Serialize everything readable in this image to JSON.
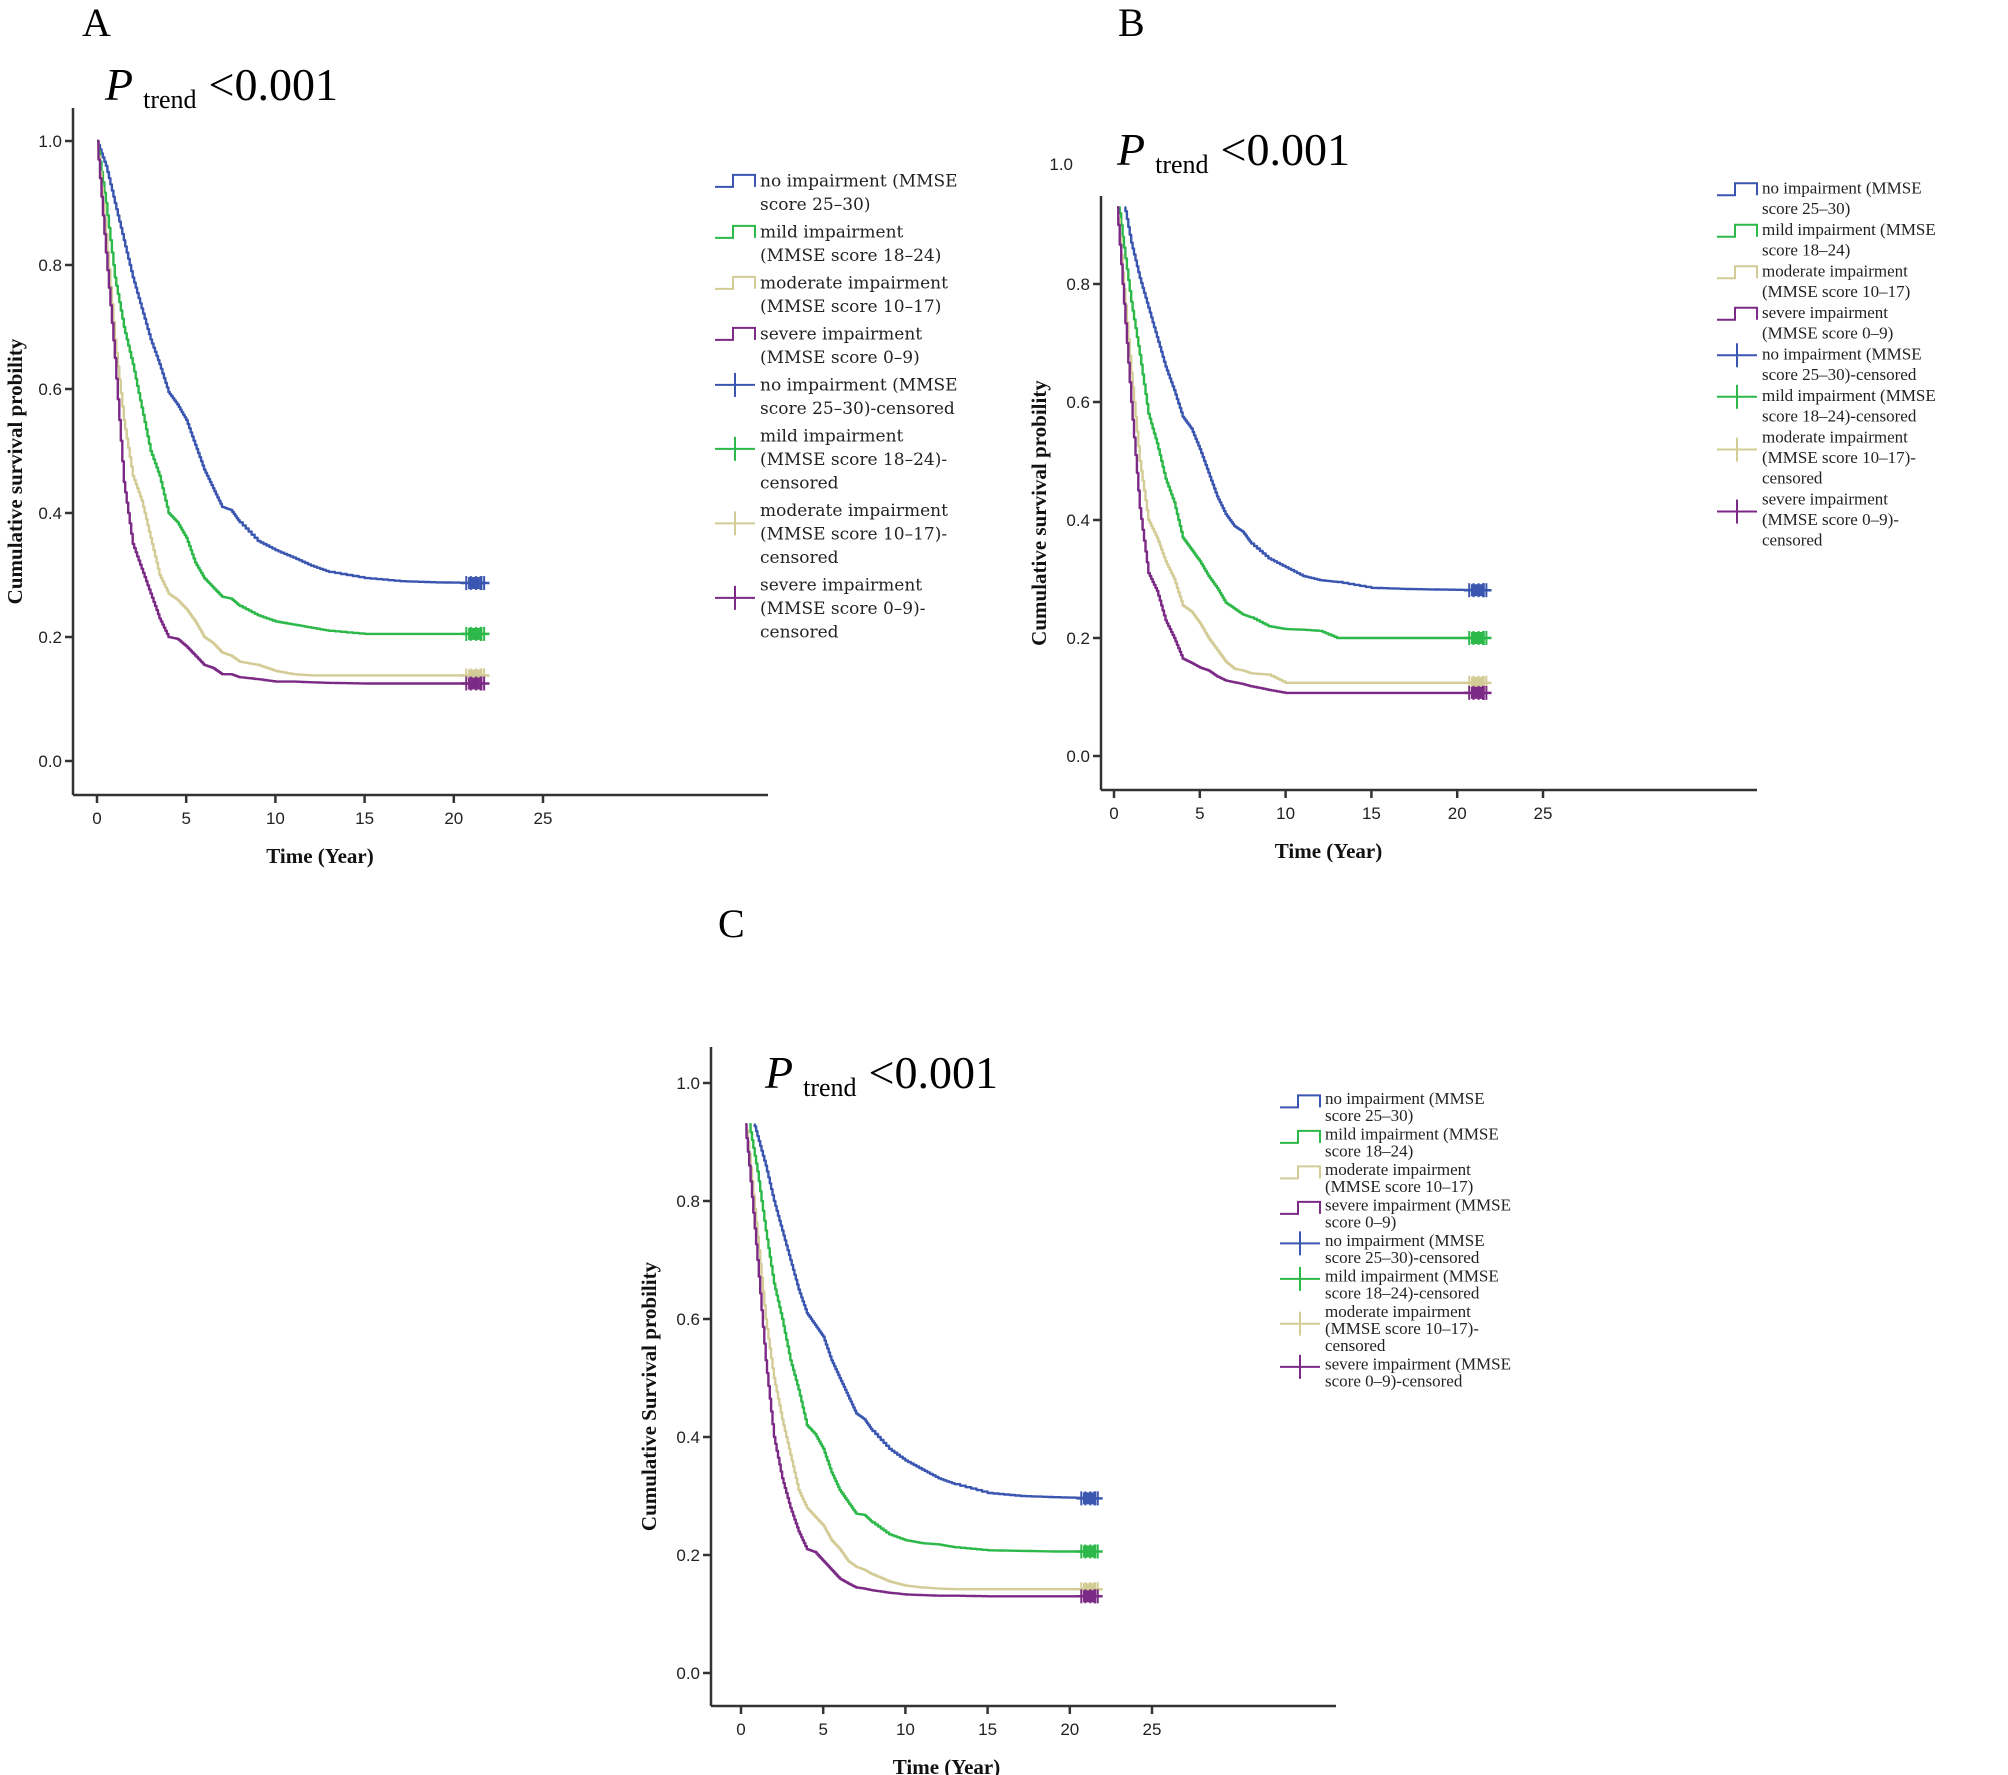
{
  "figure": {
    "panels": [
      "A",
      "B",
      "C"
    ]
  },
  "colors": {
    "no_impairment": "#3a56b0",
    "mild_impairment": "#2db84a",
    "moderate_impairment": "#d4cc96",
    "severe_impairment": "#7b2a85"
  },
  "chart_data": [
    {
      "panel": "A",
      "type": "line",
      "subtype": "kaplan-meier step",
      "annotation": {
        "p": "P",
        "sub": "trend",
        "value": "<0.001"
      },
      "xlabel": "Time (Year)",
      "ylabel": "Cumulative survival probility",
      "xlim": [
        0,
        25
      ],
      "ylim": [
        0,
        1.0
      ],
      "xticks": [
        "0",
        "5",
        "10",
        "15",
        "20",
        "25"
      ],
      "yticks": [
        "0.0",
        "0.2",
        "0.4",
        "0.6",
        "0.8",
        "1.0"
      ],
      "y_curve_top": 1.0,
      "legend_position": "right",
      "legend": [
        "no impairment (MMSE score 25–30)",
        "mild impairment (MMSE score 18–24)",
        "moderate impairment (MMSE score 10–17)",
        "severe impairment (MMSE score 0–9)",
        "no impairment (MMSE score 25–30)-censored",
        "mild impairment (MMSE score 18–24)-censored",
        "moderate impairment (MMSE score 10–17)-censored",
        "severe impairment (MMSE score 0–9)-censored"
      ],
      "legend_lines": [
        [
          "no impairment (MMSE",
          "score 25–30)"
        ],
        [
          "mild impairment",
          "(MMSE score 18–24)"
        ],
        [
          "moderate impairment",
          "(MMSE score 10–17)"
        ],
        [
          "severe impairment",
          "(MMSE score 0–9)"
        ],
        [
          "no impairment (MMSE",
          "score 25–30)-censored"
        ],
        [
          "mild impairment",
          "(MMSE score 18–24)-",
          "censored"
        ],
        [
          "moderate impairment",
          "(MMSE score 10–17)-",
          "censored"
        ],
        [
          "severe impairment",
          "(MMSE score 0–9)-",
          "censored"
        ]
      ],
      "x": [
        0,
        0.5,
        1,
        1.5,
        2,
        2.5,
        3,
        3.5,
        4,
        4.5,
        5,
        5.5,
        6,
        6.5,
        7,
        7.5,
        8,
        9,
        10,
        11,
        12,
        13,
        15,
        17,
        19,
        21.7
      ],
      "series": [
        {
          "name": "no impairment (MMSE score 25–30)",
          "key": "no_impairment",
          "values": [
            1.0,
            0.96,
            0.9,
            0.84,
            0.78,
            0.73,
            0.68,
            0.64,
            0.595,
            0.575,
            0.55,
            0.51,
            0.47,
            0.44,
            0.41,
            0.405,
            0.385,
            0.355,
            0.34,
            0.328,
            0.315,
            0.305,
            0.295,
            0.29,
            0.288,
            0.287
          ],
          "censored_range": [
            20.7,
            21.7
          ]
        },
        {
          "name": "mild impairment (MMSE score 18–24)",
          "key": "mild_impairment",
          "values": [
            1.0,
            0.9,
            0.78,
            0.7,
            0.64,
            0.57,
            0.5,
            0.46,
            0.4,
            0.385,
            0.36,
            0.32,
            0.295,
            0.28,
            0.265,
            0.262,
            0.25,
            0.235,
            0.225,
            0.22,
            0.215,
            0.21,
            0.205,
            0.205,
            0.205,
            0.205
          ],
          "censored_range": [
            20.7,
            21.7
          ]
        },
        {
          "name": "moderate impairment (MMSE score 10–17)",
          "key": "moderate_impairment",
          "values": [
            1.0,
            0.85,
            0.68,
            0.55,
            0.46,
            0.42,
            0.36,
            0.3,
            0.27,
            0.26,
            0.245,
            0.225,
            0.2,
            0.19,
            0.175,
            0.17,
            0.16,
            0.155,
            0.145,
            0.14,
            0.138,
            0.138,
            0.138,
            0.138,
            0.138,
            0.138
          ],
          "censored_range": [
            20.7,
            21.7
          ]
        },
        {
          "name": "severe impairment (MMSE score 0–9)",
          "key": "severe_impairment",
          "values": [
            1.0,
            0.82,
            0.65,
            0.45,
            0.35,
            0.31,
            0.27,
            0.23,
            0.2,
            0.197,
            0.185,
            0.17,
            0.155,
            0.15,
            0.14,
            0.14,
            0.135,
            0.132,
            0.128,
            0.128,
            0.127,
            0.126,
            0.125,
            0.125,
            0.125,
            0.125
          ],
          "censored_range": [
            20.7,
            21.7
          ]
        }
      ]
    },
    {
      "panel": "B",
      "type": "line",
      "subtype": "kaplan-meier step",
      "annotation": {
        "p": "P",
        "sub": "trend",
        "value": "<0.001"
      },
      "xlabel": "Time (Year)",
      "ylabel": "Cumulative survival probility",
      "xlim": [
        0,
        25
      ],
      "ylim": [
        0,
        1.0
      ],
      "xticks": [
        "0",
        "5",
        "10",
        "15",
        "20",
        "25"
      ],
      "yticks": [
        "0.0",
        "0.2",
        "0.4",
        "0.6",
        "0.8",
        "1.0"
      ],
      "y_curve_top": 0.93,
      "legend_position": "right",
      "legend": [
        "no impairment (MMSE score 25–30)",
        "mild impairment (MMSE score 18–24)",
        "moderate impairment (MMSE score 10–17)",
        "severe impairment (MMSE score 0–9)",
        "no impairment (MMSE score 25–30)-censored",
        "mild impairment (MMSE score 18–24)-censored",
        "moderate impairment (MMSE score 10–17)-censored",
        "severe impairment (MMSE score 0–9)-censored"
      ],
      "legend_lines": [
        [
          "no impairment (MMSE",
          "score 25–30)"
        ],
        [
          "mild impairment (MMSE",
          "score 18–24)"
        ],
        [
          "moderate impairment",
          "(MMSE score 10–17)"
        ],
        [
          "severe impairment",
          "(MMSE score 0–9)"
        ],
        [
          "no impairment (MMSE",
          "score 25–30)-censored"
        ],
        [
          "mild impairment (MMSE",
          "score 18–24)-censored"
        ],
        [
          "moderate impairment",
          "(MMSE score 10–17)-",
          "censored"
        ],
        [
          "severe impairment",
          "(MMSE score 0–9)-",
          "censored"
        ]
      ],
      "x": [
        0,
        0.5,
        1,
        1.5,
        2,
        2.5,
        3,
        3.5,
        4,
        4.5,
        5,
        5.5,
        6,
        6.5,
        7,
        7.5,
        8,
        9,
        10,
        11,
        12,
        13,
        15,
        17,
        19,
        21.7
      ],
      "series": [
        {
          "name": "no impairment (MMSE score 25–30)",
          "key": "no_impairment",
          "values": [
            1.0,
            0.95,
            0.87,
            0.81,
            0.76,
            0.71,
            0.66,
            0.62,
            0.575,
            0.555,
            0.52,
            0.48,
            0.44,
            0.41,
            0.39,
            0.38,
            0.36,
            0.335,
            0.32,
            0.305,
            0.298,
            0.295,
            0.285,
            0.283,
            0.282,
            0.281
          ],
          "censored_range": [
            20.7,
            21.7
          ]
        },
        {
          "name": "mild impairment (MMSE score 18–24)",
          "key": "mild_impairment",
          "values": [
            1.0,
            0.88,
            0.77,
            0.68,
            0.58,
            0.53,
            0.47,
            0.43,
            0.37,
            0.35,
            0.33,
            0.305,
            0.285,
            0.26,
            0.25,
            0.24,
            0.235,
            0.22,
            0.215,
            0.214,
            0.212,
            0.2,
            0.2,
            0.2,
            0.2,
            0.2
          ],
          "censored_range": [
            20.7,
            21.7
          ]
        },
        {
          "name": "moderate impairment (MMSE score 10–17)",
          "key": "moderate_impairment",
          "values": [
            1.0,
            0.82,
            0.65,
            0.5,
            0.4,
            0.37,
            0.33,
            0.3,
            0.255,
            0.245,
            0.225,
            0.2,
            0.18,
            0.16,
            0.148,
            0.145,
            0.14,
            0.138,
            0.124,
            0.124,
            0.124,
            0.124,
            0.124,
            0.124,
            0.124,
            0.124
          ],
          "censored_range": [
            20.7,
            21.7
          ]
        },
        {
          "name": "severe impairment (MMSE score 0–9)",
          "key": "severe_impairment",
          "values": [
            1.0,
            0.8,
            0.6,
            0.42,
            0.31,
            0.28,
            0.23,
            0.2,
            0.165,
            0.158,
            0.15,
            0.145,
            0.135,
            0.128,
            0.125,
            0.122,
            0.118,
            0.112,
            0.107,
            0.107,
            0.107,
            0.107,
            0.107,
            0.107,
            0.107,
            0.107
          ],
          "censored_range": [
            20.7,
            21.7
          ]
        }
      ]
    },
    {
      "panel": "C",
      "type": "line",
      "subtype": "kaplan-meier step",
      "annotation": {
        "p": "P",
        "sub": "trend",
        "value": "<0.001"
      },
      "xlabel": "Time (Year)",
      "ylabel": "Cumulative Survival probility",
      "xlim": [
        0,
        25
      ],
      "ylim": [
        0,
        1.0
      ],
      "xticks": [
        "0",
        "5",
        "10",
        "15",
        "20",
        "25"
      ],
      "yticks": [
        "0.0",
        "0.2",
        "0.4",
        "0.6",
        "0.8",
        "1.0"
      ],
      "y_curve_top": 0.93,
      "legend_position": "right",
      "legend": [
        "no impairment (MMSE score 25–30)",
        "mild impairment (MMSE score 18–24)",
        "moderate impairment (MMSE score 10–17)",
        "severe impairment (MMSE score 0–9)",
        "no impairment (MMSE score 25–30)-censored",
        "mild impairment (MMSE score 18–24)-censored",
        "moderate impairment (MMSE score 10–17)-censored",
        "severe impairment (MMSE score 0–9)-censored"
      ],
      "legend_lines": [
        [
          "no impairment (MMSE",
          "score 25–30)"
        ],
        [
          "mild impairment (MMSE",
          "score 18–24)"
        ],
        [
          "moderate impairment",
          "(MMSE score 10–17)"
        ],
        [
          "severe impairment (MMSE",
          "score 0–9)"
        ],
        [
          "no impairment (MMSE",
          "score 25–30)-censored"
        ],
        [
          "mild impairment (MMSE",
          "score 18–24)-censored"
        ],
        [
          "moderate impairment",
          "(MMSE score 10–17)-",
          "censored"
        ],
        [
          "severe impairment (MMSE",
          "score 0–9)-censored"
        ]
      ],
      "x": [
        0,
        0.5,
        1,
        1.5,
        2,
        2.5,
        3,
        3.5,
        4,
        4.5,
        5,
        5.5,
        6,
        6.5,
        7,
        7.5,
        8,
        9,
        10,
        11,
        12,
        13,
        15,
        17,
        19,
        21.7
      ],
      "series": [
        {
          "name": "no impairment (MMSE score 25–30)",
          "key": "no_impairment",
          "values": [
            1.0,
            0.96,
            0.91,
            0.86,
            0.8,
            0.75,
            0.7,
            0.65,
            0.61,
            0.59,
            0.57,
            0.53,
            0.5,
            0.47,
            0.44,
            0.43,
            0.41,
            0.38,
            0.36,
            0.345,
            0.33,
            0.32,
            0.305,
            0.3,
            0.298,
            0.296
          ],
          "censored_range": [
            20.7,
            21.7
          ]
        },
        {
          "name": "mild impairment (MMSE score 18–24)",
          "key": "mild_impairment",
          "values": [
            1.0,
            0.93,
            0.85,
            0.75,
            0.66,
            0.6,
            0.53,
            0.48,
            0.42,
            0.405,
            0.38,
            0.34,
            0.31,
            0.29,
            0.27,
            0.268,
            0.255,
            0.235,
            0.225,
            0.22,
            0.218,
            0.213,
            0.208,
            0.207,
            0.206,
            0.206
          ],
          "censored_range": [
            20.7,
            21.7
          ]
        },
        {
          "name": "moderate impairment (MMSE score 10–17)",
          "key": "moderate_impairment",
          "values": [
            1.0,
            0.88,
            0.74,
            0.6,
            0.5,
            0.43,
            0.37,
            0.31,
            0.28,
            0.265,
            0.25,
            0.225,
            0.21,
            0.19,
            0.18,
            0.175,
            0.167,
            0.155,
            0.148,
            0.145,
            0.143,
            0.142,
            0.142,
            0.142,
            0.142,
            0.142
          ],
          "censored_range": [
            20.7,
            21.7
          ]
        },
        {
          "name": "severe impairment (MMSE score 0–9)",
          "key": "severe_impairment",
          "values": [
            1.0,
            0.86,
            0.7,
            0.53,
            0.4,
            0.33,
            0.28,
            0.24,
            0.21,
            0.205,
            0.19,
            0.175,
            0.16,
            0.152,
            0.145,
            0.143,
            0.14,
            0.136,
            0.133,
            0.132,
            0.131,
            0.131,
            0.13,
            0.13,
            0.13,
            0.13
          ],
          "censored_range": [
            20.7,
            21.7
          ]
        }
      ]
    }
  ]
}
